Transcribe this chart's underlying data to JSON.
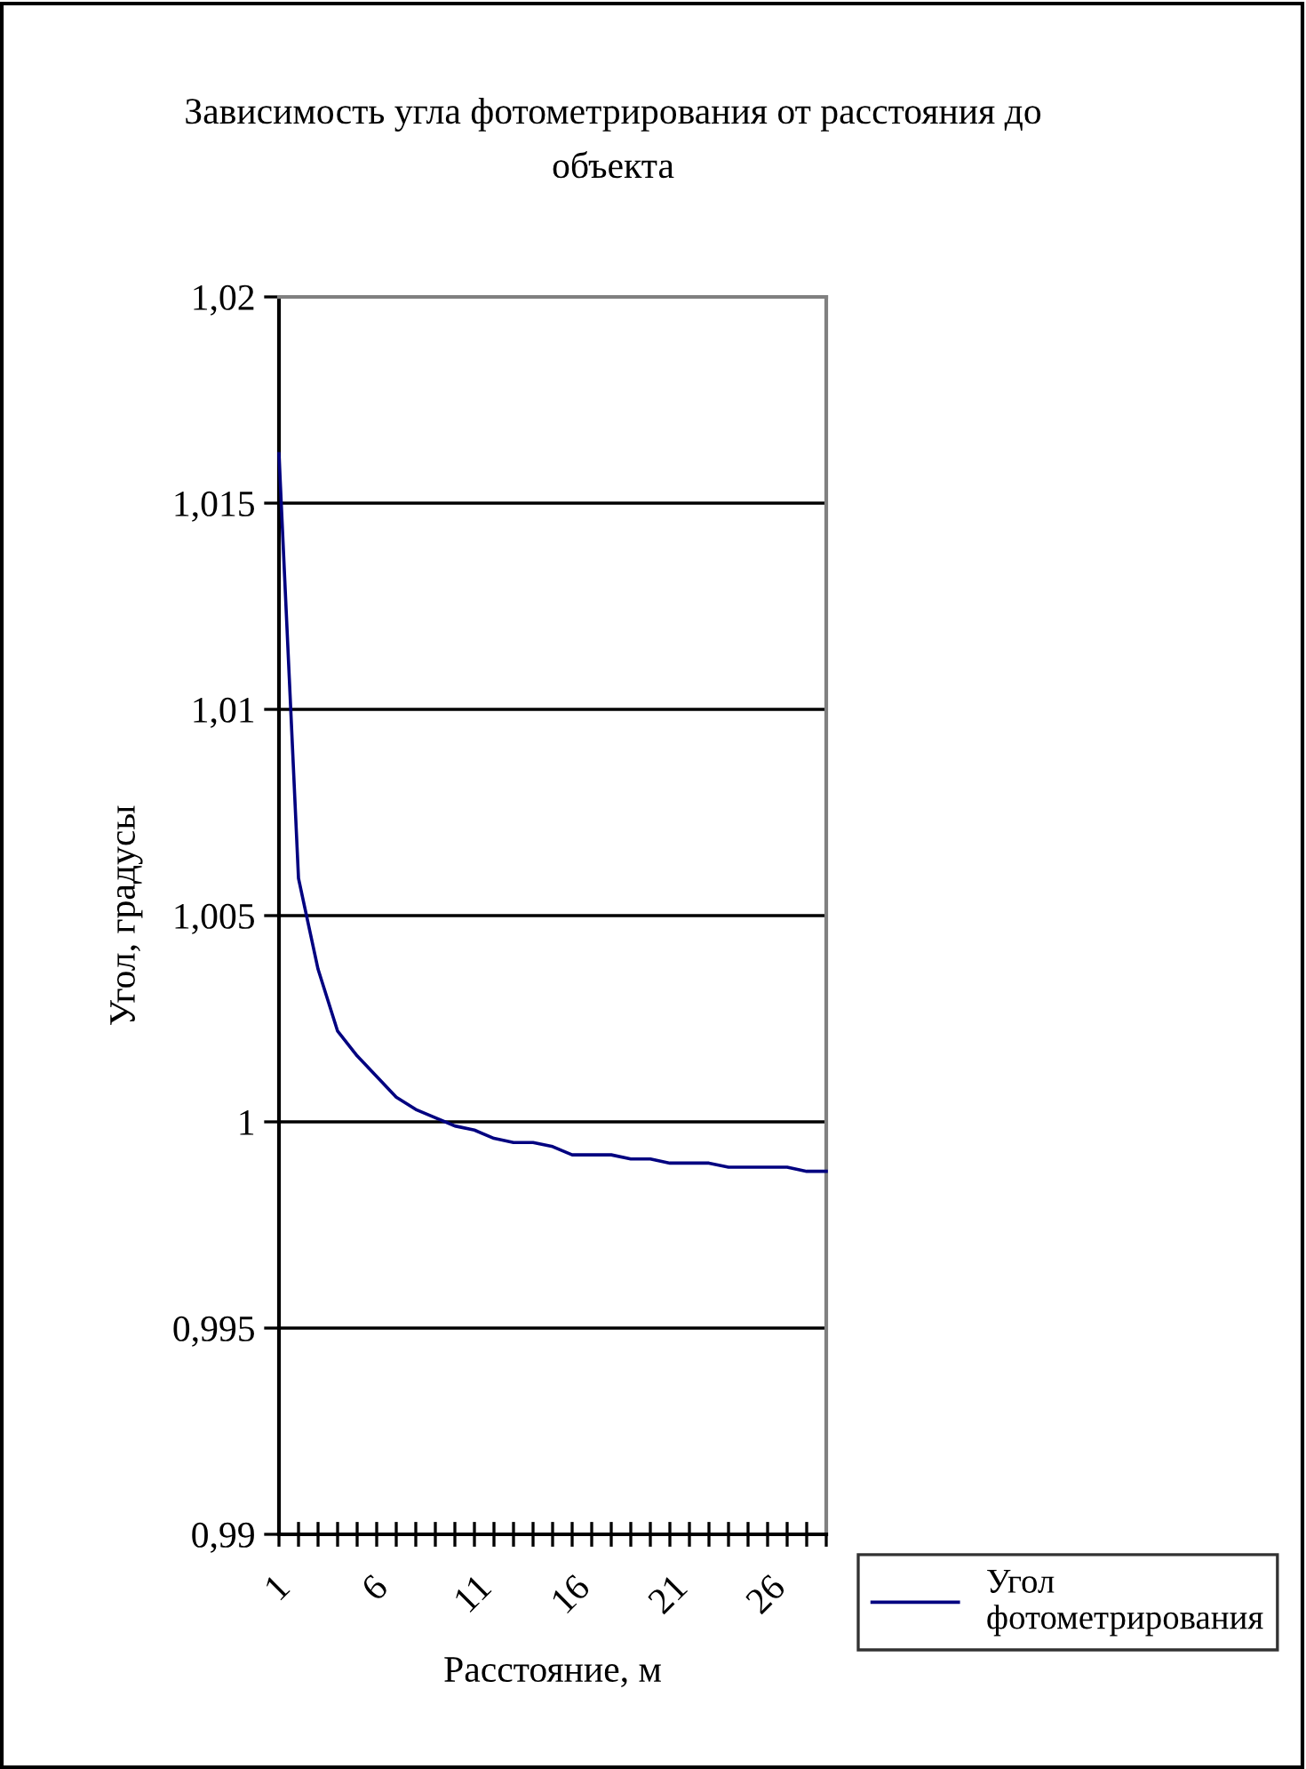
{
  "chart_data": {
    "type": "line",
    "title": "Зависимость угла фотометрирования от расстояния до объекта",
    "xlabel": "Расстояние, м",
    "ylabel": "Угол, градусы",
    "categories": [
      "1",
      null,
      null,
      null,
      null,
      "6",
      null,
      null,
      null,
      null,
      "11",
      null,
      null,
      null,
      null,
      "16",
      null,
      null,
      null,
      null,
      "21",
      null,
      null,
      null,
      null,
      "26",
      null,
      null,
      null
    ],
    "series": [
      {
        "name": "Угол фотометрирования",
        "color": "#000080",
        "values": [
          1.0162,
          1.0059,
          1.0037,
          1.0022,
          1.0016,
          1.0011,
          1.0006,
          1.0003,
          1.0001,
          0.9999,
          0.9998,
          0.9996,
          0.9995,
          0.9995,
          0.9994,
          0.9992,
          0.9992,
          0.9992,
          0.9991,
          0.9991,
          0.999,
          0.999,
          0.999,
          0.9989,
          0.9989,
          0.9989,
          0.9989,
          0.9988,
          0.9988
        ]
      }
    ],
    "ylim": [
      0.99,
      1.02
    ],
    "yticks": [
      {
        "value": 0.99,
        "label": "0,99"
      },
      {
        "value": 0.995,
        "label": "0,995"
      },
      {
        "value": 1.0,
        "label": "1"
      },
      {
        "value": 1.005,
        "label": "1,005"
      },
      {
        "value": 1.01,
        "label": "1,01"
      },
      {
        "value": 1.015,
        "label": "1,015"
      },
      {
        "value": 1.02,
        "label": "1,02"
      }
    ],
    "grid": "y",
    "legend": "bottom right",
    "marker": "none",
    "line_style": "solid"
  }
}
